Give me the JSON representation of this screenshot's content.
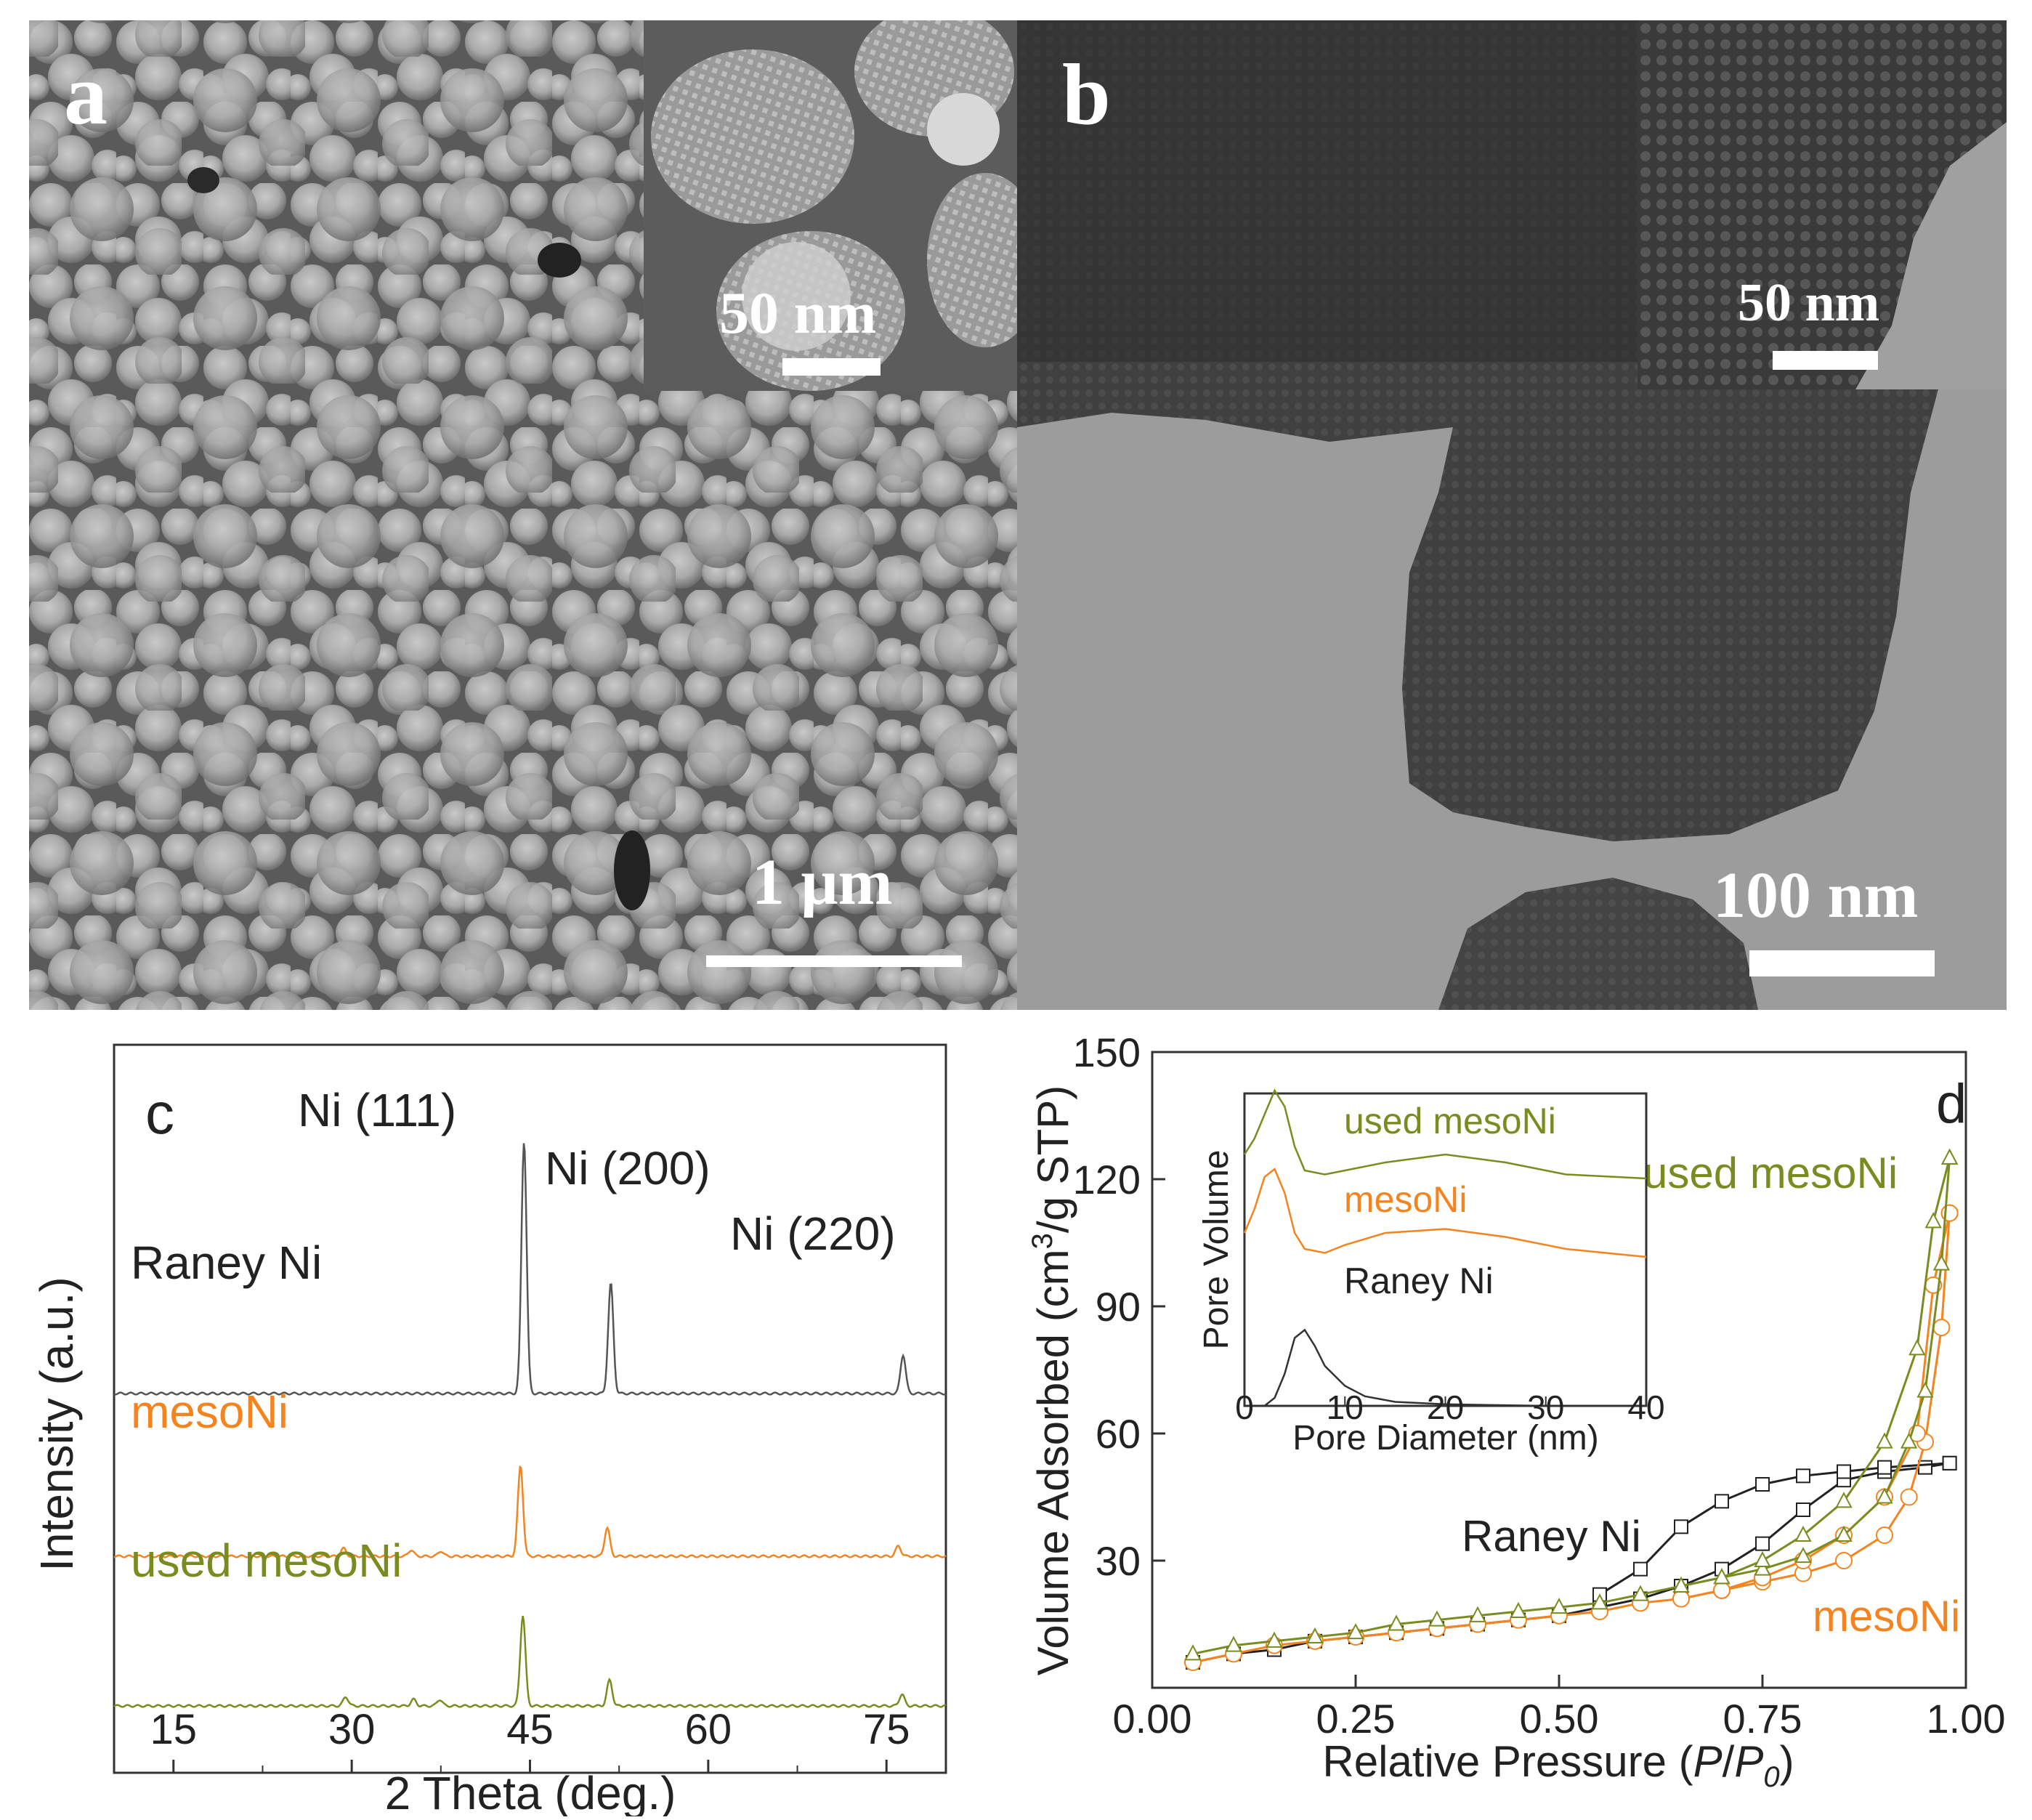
{
  "panel_a": {
    "letter": "a",
    "scale_main": "1 μm",
    "scale_inset": "50 nm"
  },
  "panel_b": {
    "letter": "b",
    "scale_main": "100 nm",
    "scale_inset": "50 nm"
  },
  "chart_data": [
    {
      "id": "c",
      "type": "line",
      "panel_label": "c",
      "xlabel": "2 Theta (deg.)",
      "ylabel": "Intensity (a.u.)",
      "xlim": [
        10,
        80
      ],
      "xticks": [
        15,
        30,
        45,
        60,
        75
      ],
      "peak_labels": [
        "Ni (111)",
        "Ni (200)",
        "Ni (220)"
      ],
      "peaks_2theta": [
        44.5,
        51.8,
        76.4
      ],
      "series": [
        {
          "name": "Raney Ni",
          "color": "#555555",
          "baseline": 2.0,
          "peaks": [
            [
              44.5,
              1.95
            ],
            [
              51.8,
              0.85
            ],
            [
              76.4,
              0.3
            ]
          ]
        },
        {
          "name": "mesoNi",
          "color": "#f5841f",
          "baseline": 1.0,
          "peaks": [
            [
              44.2,
              0.7
            ],
            [
              51.5,
              0.22
            ],
            [
              76.0,
              0.08
            ],
            [
              29.3,
              0.06
            ],
            [
              35.0,
              0.05
            ],
            [
              37.5,
              0.04
            ]
          ]
        },
        {
          "name": "used mesoNi",
          "color": "#7a8c1f",
          "baseline": 0.0,
          "peaks": [
            [
              44.4,
              0.7
            ],
            [
              51.7,
              0.2
            ],
            [
              76.3,
              0.09
            ],
            [
              29.5,
              0.07
            ],
            [
              35.2,
              0.05
            ],
            [
              37.4,
              0.05
            ]
          ]
        }
      ]
    },
    {
      "id": "d",
      "type": "line",
      "panel_label": "d",
      "xlabel": "Relative Pressure (P/P0)",
      "ylabel": "Volume Adsorbed (cm3/g STP)",
      "xlim": [
        0,
        1.0
      ],
      "ylim": [
        0,
        150
      ],
      "xticks": [
        "0.00",
        "0.25",
        "0.50",
        "0.75",
        "1.00"
      ],
      "yticks": [
        "30",
        "60",
        "90",
        "120",
        "150"
      ],
      "series": [
        {
          "name": "Raney Ni",
          "color": "#222222",
          "marker": "square",
          "adsorption": {
            "x": [
              0.05,
              0.1,
              0.15,
              0.2,
              0.25,
              0.3,
              0.35,
              0.4,
              0.45,
              0.5,
              0.55,
              0.6,
              0.65,
              0.7,
              0.75,
              0.8,
              0.85,
              0.9,
              0.95,
              0.98
            ],
            "y": [
              6,
              8,
              9,
              11,
              12,
              13,
              14,
              15,
              16,
              17,
              19,
              21,
              24,
              28,
              34,
              42,
              49,
              51,
              52,
              53
            ]
          },
          "desorption": {
            "x": [
              0.98,
              0.9,
              0.85,
              0.8,
              0.75,
              0.7,
              0.65,
              0.6,
              0.55
            ],
            "y": [
              53,
              52,
              51,
              50,
              48,
              44,
              38,
              28,
              22
            ]
          }
        },
        {
          "name": "mesoNi",
          "color": "#f5841f",
          "marker": "circle",
          "adsorption": {
            "x": [
              0.05,
              0.1,
              0.15,
              0.2,
              0.25,
              0.3,
              0.35,
              0.4,
              0.45,
              0.5,
              0.55,
              0.6,
              0.65,
              0.7,
              0.75,
              0.8,
              0.85,
              0.9,
              0.93,
              0.95,
              0.97,
              0.98
            ],
            "y": [
              6,
              8,
              10,
              11,
              12,
              13,
              14,
              15,
              16,
              17,
              18,
              20,
              21,
              23,
              25,
              27,
              30,
              36,
              45,
              58,
              85,
              112
            ]
          },
          "desorption": {
            "x": [
              0.98,
              0.96,
              0.94,
              0.9,
              0.85,
              0.8,
              0.75,
              0.7,
              0.65
            ],
            "y": [
              112,
              95,
              60,
              45,
              36,
              30,
              26,
              23,
              21
            ]
          }
        },
        {
          "name": "used mesoNi",
          "color": "#7a8c1f",
          "marker": "triangle",
          "adsorption": {
            "x": [
              0.05,
              0.1,
              0.15,
              0.2,
              0.25,
              0.3,
              0.35,
              0.4,
              0.45,
              0.5,
              0.55,
              0.6,
              0.65,
              0.7,
              0.75,
              0.8,
              0.85,
              0.9,
              0.93,
              0.95,
              0.97,
              0.98
            ],
            "y": [
              8,
              10,
              11,
              12,
              13,
              15,
              16,
              17,
              18,
              19,
              20,
              22,
              24,
              26,
              28,
              31,
              36,
              45,
              58,
              70,
              100,
              125
            ]
          },
          "desorption": {
            "x": [
              0.98,
              0.96,
              0.94,
              0.9,
              0.85,
              0.8,
              0.75,
              0.7,
              0.65
            ],
            "y": [
              125,
              110,
              80,
              58,
              44,
              36,
              30,
              26,
              24
            ]
          }
        }
      ],
      "inset": {
        "type": "line",
        "xlabel": "Pore Diameter (nm)",
        "ylabel": "Pore Volume",
        "xlim": [
          0,
          40
        ],
        "xticks": [
          "0",
          "10",
          "20",
          "30",
          "40"
        ],
        "series": [
          {
            "name": "used mesoNi",
            "color": "#7a8c1f",
            "baseline": 2.0,
            "x": [
              0,
              1,
              2,
              3,
              4,
              5,
              6,
              8,
              10,
              14,
              20,
              26,
              32,
              40
            ],
            "y": [
              2.3,
              2.5,
              2.8,
              3.1,
              2.9,
              2.4,
              2.1,
              2.05,
              2.1,
              2.2,
              2.3,
              2.2,
              2.05,
              2.0
            ]
          },
          {
            "name": "mesoNi",
            "color": "#f5841f",
            "baseline": 1.0,
            "x": [
              0,
              1,
              2,
              3,
              4,
              5,
              6,
              8,
              10,
              14,
              20,
              26,
              32,
              40
            ],
            "y": [
              1.3,
              1.6,
              2.0,
              2.1,
              1.8,
              1.3,
              1.1,
              1.05,
              1.15,
              1.3,
              1.35,
              1.25,
              1.1,
              1.0
            ]
          },
          {
            "name": "Raney Ni",
            "color": "#333333",
            "baseline": 0.0,
            "x": [
              2,
              3,
              4,
              5,
              6,
              7,
              8,
              10,
              12,
              15,
              20,
              30,
              40
            ],
            "y": [
              0.0,
              0.1,
              0.4,
              0.85,
              0.95,
              0.75,
              0.5,
              0.25,
              0.12,
              0.05,
              0.02,
              0.0,
              0.0
            ]
          }
        ]
      }
    }
  ]
}
